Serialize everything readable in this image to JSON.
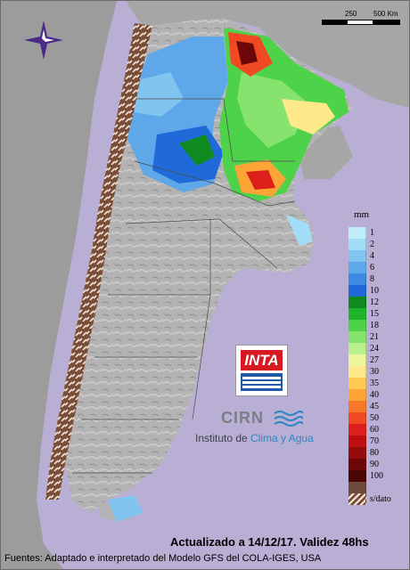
{
  "scale_bar": {
    "labels": [
      "250",
      "500 Km"
    ]
  },
  "legend": {
    "title": "mm",
    "items": [
      {
        "value": "1",
        "color": "#bfeefa"
      },
      {
        "value": "2",
        "color": "#a3dcf6"
      },
      {
        "value": "4",
        "color": "#82c4f0"
      },
      {
        "value": "6",
        "color": "#5ea8ea"
      },
      {
        "value": "8",
        "color": "#3d8ae3"
      },
      {
        "value": "10",
        "color": "#1f6ad8"
      },
      {
        "value": "12",
        "color": "#0f8a1f"
      },
      {
        "value": "15",
        "color": "#1fb52a"
      },
      {
        "value": "18",
        "color": "#4ed24a"
      },
      {
        "value": "21",
        "color": "#86e36e"
      },
      {
        "value": "24",
        "color": "#b9ef8c"
      },
      {
        "value": "27",
        "color": "#eaf79a"
      },
      {
        "value": "30",
        "color": "#fde98a"
      },
      {
        "value": "35",
        "color": "#fdc954"
      },
      {
        "value": "40",
        "color": "#fca436"
      },
      {
        "value": "45",
        "color": "#f8782a"
      },
      {
        "value": "50",
        "color": "#f04a22"
      },
      {
        "value": "60",
        "color": "#dc1f1a"
      },
      {
        "value": "70",
        "color": "#bc0f12"
      },
      {
        "value": "80",
        "color": "#960b0c"
      },
      {
        "value": "90",
        "color": "#6e0707"
      },
      {
        "value": "100",
        "color": "#4a0404"
      },
      {
        "value": "",
        "color": "#6e4a3a"
      },
      {
        "value": "s/dato",
        "color": "hatch"
      }
    ]
  },
  "logos": {
    "inta": "INTA",
    "cirn": "CIRN",
    "institute_prefix": "Instituto de ",
    "institute_accent": "Clima y Agua"
  },
  "footer": {
    "updated": "Actualizado a 14/12/17. Validez 48hs",
    "sources": "Fuentes: Adaptado e interpretado del Modelo GFS del COLA-IGES, USA"
  },
  "icons": {
    "compass": "compass-rose-icon"
  },
  "colors": {
    "background": "#b9aed3",
    "land": "#b5b5b5",
    "neighbor": "#a0a0a0"
  }
}
